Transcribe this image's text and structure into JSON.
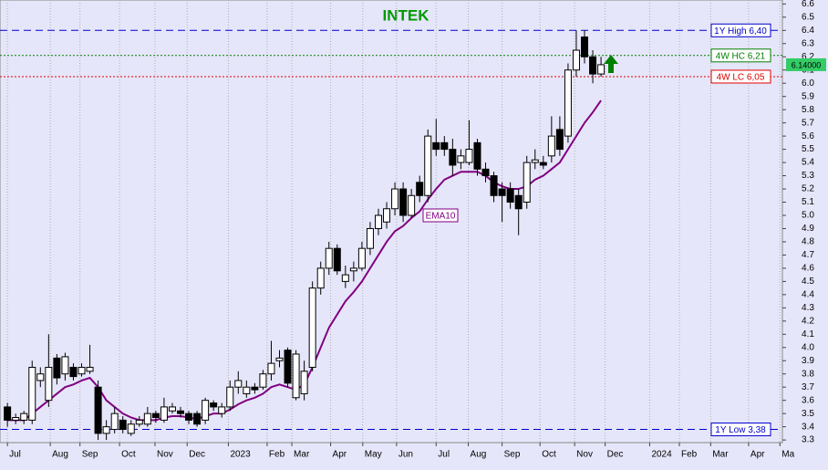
{
  "chart_data": {
    "type": "candlestick",
    "title": "INTEK",
    "xlim": [
      -0.9,
      94
    ],
    "xticks": [
      {
        "value": 0,
        "label": "Jul"
      },
      {
        "value": 5.2,
        "label": "Aug"
      },
      {
        "value": 8.8,
        "label": "Sep"
      },
      {
        "value": 13.6,
        "label": "Oct"
      },
      {
        "value": 17.9,
        "label": "Nov"
      },
      {
        "value": 21.8,
        "label": "Dec"
      },
      {
        "value": 26.8,
        "label": "2023"
      },
      {
        "value": 31.5,
        "label": "Feb"
      },
      {
        "value": 34.5,
        "label": "Mar"
      },
      {
        "value": 39.2,
        "label": "Apr"
      },
      {
        "value": 43.1,
        "label": "May"
      },
      {
        "value": 47.2,
        "label": "Jun"
      },
      {
        "value": 52,
        "label": "Jul"
      },
      {
        "value": 55.9,
        "label": "Aug"
      },
      {
        "value": 60,
        "label": "Sep"
      },
      {
        "value": 64.6,
        "label": "Oct"
      },
      {
        "value": 68.8,
        "label": "Nov"
      },
      {
        "value": 72.5,
        "label": "Dec"
      },
      {
        "value": 77.9,
        "label": "2024"
      },
      {
        "value": 81.5,
        "label": "Feb"
      },
      {
        "value": 85.3,
        "label": "Mar"
      },
      {
        "value": 89.9,
        "label": "Apr"
      },
      {
        "value": 93.7,
        "label": "Ma"
      }
    ],
    "ylim": [
      3.28,
      6.63
    ],
    "yticks": [
      3.3,
      3.4,
      3.5,
      3.6,
      3.7,
      3.8,
      3.9,
      {
        "value": 4,
        "label": "4.0"
      },
      4.1,
      4.2,
      4.3,
      4.4,
      4.5,
      4.6,
      4.7,
      4.8,
      4.9,
      {
        "value": 5,
        "label": "5.0"
      },
      5.1,
      5.2,
      5.3,
      5.4,
      5.5,
      5.6,
      5.7,
      5.8,
      5.9,
      {
        "value": 6,
        "label": "6.0"
      },
      6.1,
      6.2,
      6.3,
      6.4,
      6.5,
      6.6
    ],
    "grid": true,
    "open": [
      3.55,
      3.45,
      3.45,
      3.45,
      3.75,
      3.6,
      3.92,
      3.8,
      3.85,
      3.8,
      3.82,
      3.7,
      3.35,
      3.38,
      3.45,
      3.35,
      3.42,
      3.42,
      3.5,
      3.45,
      3.52,
      3.52,
      3.5,
      3.5,
      3.45,
      3.58,
      3.5,
      3.55,
      3.7,
      3.65,
      3.7,
      3.7,
      3.8,
      3.9,
      3.98,
      3.62,
      3.65,
      3.85,
      4.45,
      4.6,
      4.75,
      4.5,
      4.58,
      4.6,
      4.75,
      4.9,
      4.95,
      5.05,
      5.2,
      5.0,
      5.25,
      5.15,
      5.55,
      5.55,
      5.5,
      5.4,
      5.4,
      5.55,
      5.35,
      5.3,
      5.2,
      5.2,
      5.15,
      5.1,
      5.4,
      5.4,
      5.45,
      5.65,
      5.6,
      6.1,
      6.35,
      6.2,
      6.07
    ],
    "high": [
      3.58,
      3.5,
      3.52,
      3.9,
      3.85,
      4.1,
      3.95,
      3.96,
      3.88,
      3.88,
      4.02,
      3.75,
      3.45,
      3.55,
      3.48,
      3.45,
      3.48,
      3.55,
      3.52,
      3.62,
      3.58,
      3.55,
      3.52,
      3.52,
      3.62,
      3.6,
      3.58,
      3.75,
      3.82,
      3.75,
      3.73,
      3.83,
      4.05,
      3.98,
      4.0,
      3.98,
      3.9,
      4.5,
      4.65,
      4.8,
      4.78,
      4.62,
      4.65,
      4.8,
      4.95,
      5.05,
      5.1,
      5.25,
      5.25,
      5.2,
      5.3,
      5.65,
      5.73,
      5.6,
      5.58,
      5.5,
      5.72,
      5.58,
      5.4,
      5.33,
      5.25,
      5.25,
      5.2,
      5.45,
      5.5,
      5.45,
      5.75,
      5.75,
      6.15,
      6.4,
      6.4,
      6.25,
      6.2
    ],
    "low": [
      3.4,
      3.42,
      3.42,
      3.42,
      3.7,
      3.55,
      3.72,
      3.75,
      3.75,
      3.78,
      3.8,
      3.3,
      3.3,
      3.35,
      3.35,
      3.33,
      3.4,
      3.4,
      3.43,
      3.43,
      3.5,
      3.47,
      3.42,
      3.4,
      3.42,
      3.52,
      3.47,
      3.52,
      3.65,
      3.62,
      3.65,
      3.68,
      3.75,
      3.85,
      3.7,
      3.6,
      3.6,
      3.82,
      4.4,
      4.55,
      4.55,
      4.45,
      4.5,
      4.58,
      4.7,
      4.85,
      4.9,
      5.0,
      4.95,
      4.98,
      5.1,
      5.1,
      5.45,
      5.45,
      5.3,
      5.35,
      5.38,
      5.3,
      5.25,
      5.1,
      4.95,
      5.05,
      4.85,
      5.05,
      5.35,
      5.35,
      5.4,
      5.45,
      5.55,
      6.05,
      6.15,
      6.0,
      6.05
    ],
    "close": [
      3.45,
      3.47,
      3.5,
      3.85,
      3.8,
      3.85,
      3.77,
      3.93,
      3.78,
      3.85,
      3.85,
      3.35,
      3.4,
      3.5,
      3.38,
      3.42,
      3.45,
      3.5,
      3.47,
      3.55,
      3.55,
      3.5,
      3.45,
      3.42,
      3.6,
      3.55,
      3.55,
      3.7,
      3.75,
      3.7,
      3.68,
      3.8,
      3.88,
      3.92,
      3.73,
      3.95,
      3.82,
      4.45,
      4.6,
      4.75,
      4.58,
      4.55,
      4.6,
      4.75,
      4.9,
      5.0,
      5.05,
      5.2,
      5.0,
      5.15,
      5.15,
      5.6,
      5.5,
      5.5,
      5.38,
      5.45,
      5.5,
      5.35,
      5.3,
      5.15,
      5.15,
      5.1,
      5.05,
      5.4,
      5.42,
      5.38,
      5.6,
      5.5,
      6.1,
      6.25,
      6.2,
      6.07,
      6.14
    ],
    "ema": {
      "name": "EMA10",
      "color": "#800080",
      "label_at": 5.0,
      "values": [
        3.45,
        3.45,
        3.45,
        3.5,
        3.55,
        3.6,
        3.65,
        3.7,
        3.72,
        3.75,
        3.77,
        3.7,
        3.6,
        3.55,
        3.5,
        3.47,
        3.45,
        3.45,
        3.45,
        3.47,
        3.48,
        3.48,
        3.47,
        3.46,
        3.48,
        3.5,
        3.5,
        3.53,
        3.57,
        3.6,
        3.62,
        3.65,
        3.7,
        3.72,
        3.7,
        3.68,
        3.72,
        3.85,
        4.0,
        4.15,
        4.25,
        4.35,
        4.42,
        4.5,
        4.6,
        4.7,
        4.8,
        4.88,
        4.92,
        4.98,
        5.03,
        5.12,
        5.2,
        5.27,
        5.3,
        5.33,
        5.33,
        5.33,
        5.3,
        5.25,
        5.22,
        5.2,
        5.2,
        5.22,
        5.27,
        5.3,
        5.35,
        5.4,
        5.5,
        5.6,
        5.7,
        5.78,
        5.87
      ]
    },
    "levels": [
      {
        "value": 6.4,
        "label": "1Y High 6,40",
        "color": "#0000cc",
        "style": "dashed"
      },
      {
        "value": 6.21,
        "label": "4W HC 6,21",
        "color": "#008000",
        "style": "dotted"
      },
      {
        "value": 6.05,
        "label": "4W LC 6,05",
        "color": "#e00000",
        "style": "dotted"
      },
      {
        "value": 3.38,
        "label": "1Y Low 3,38",
        "color": "#0000cc",
        "style": "dashed"
      }
    ],
    "last_price": {
      "value": 6.14,
      "label": "6.14000"
    },
    "up_color": "#ffffff",
    "down_color": "#000000"
  }
}
